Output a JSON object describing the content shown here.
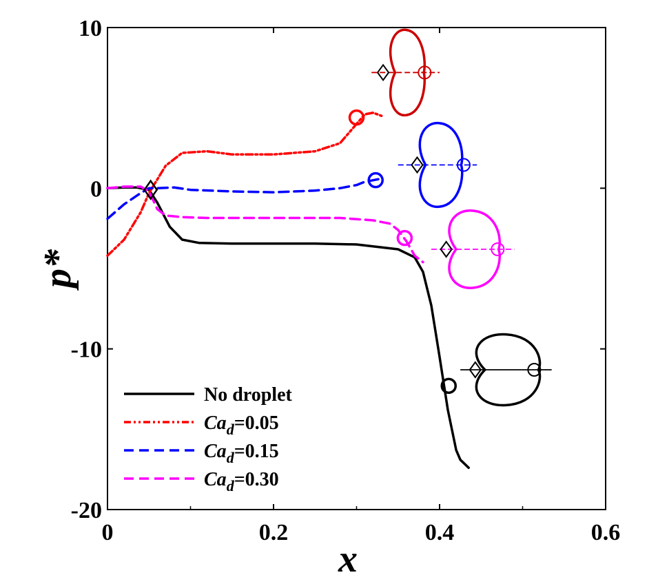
{
  "chart_data": {
    "type": "line",
    "xlabel": "x",
    "ylabel": "p*",
    "xlim": [
      0,
      0.6
    ],
    "ylim": [
      -20,
      10
    ],
    "xticks": [
      0,
      0.2,
      0.4,
      0.6
    ],
    "yticks": [
      -20,
      -10,
      0,
      10
    ],
    "xtick_labels": [
      "0",
      "0.2",
      "0.4",
      "0.6"
    ],
    "ytick_labels": [
      "-20",
      "-10",
      "0",
      "10"
    ],
    "grid": false,
    "legend_position": "bottom-left",
    "series": [
      {
        "name": "No droplet",
        "name_parts": [
          "No droplet",
          "",
          ""
        ],
        "color": "#000000",
        "style": "solid",
        "x": [
          0,
          0.02,
          0.035,
          0.05,
          0.06,
          0.075,
          0.09,
          0.11,
          0.15,
          0.25,
          0.3,
          0.35,
          0.37,
          0.38,
          0.39,
          0.4,
          0.41,
          0.42,
          0.425,
          0.435
        ],
        "y": [
          0,
          0.05,
          0.05,
          -0.1,
          -0.9,
          -2.4,
          -3.2,
          -3.4,
          -3.45,
          -3.45,
          -3.5,
          -3.8,
          -4.3,
          -5.2,
          -7.3,
          -10.5,
          -13.8,
          -16.3,
          -16.9,
          -17.4
        ]
      },
      {
        "name": "Cad=0.05",
        "name_parts": [
          "Ca",
          "d",
          "=0.05"
        ],
        "color": "#ff0000",
        "style": "dashdot",
        "x": [
          0,
          0.02,
          0.04,
          0.05,
          0.07,
          0.09,
          0.12,
          0.15,
          0.2,
          0.25,
          0.28,
          0.3,
          0.31,
          0.32,
          0.33
        ],
        "y": [
          -4.2,
          -3.2,
          -1.5,
          -0.3,
          1.4,
          2.2,
          2.3,
          2.1,
          2.1,
          2.3,
          2.8,
          4.0,
          4.6,
          4.7,
          4.5
        ]
      },
      {
        "name": "Cad=0.15",
        "name_parts": [
          "Ca",
          "d",
          "=0.15"
        ],
        "color": "#0000ff",
        "style": "dashed",
        "x": [
          0,
          0.02,
          0.04,
          0.05,
          0.06,
          0.08,
          0.1,
          0.15,
          0.2,
          0.25,
          0.28,
          0.3,
          0.31,
          0.32,
          0.33
        ],
        "y": [
          -1.9,
          -1.0,
          -0.3,
          0,
          0,
          0.05,
          -0.1,
          -0.2,
          -0.25,
          -0.15,
          0,
          0.2,
          0.4,
          0.5,
          0.6
        ]
      },
      {
        "name": "Cad=0.30",
        "name_parts": [
          "Ca",
          "d",
          "=0.30"
        ],
        "color": "#ff00ff",
        "style": "dashed",
        "x": [
          0,
          0.02,
          0.04,
          0.05,
          0.06,
          0.07,
          0.09,
          0.12,
          0.2,
          0.28,
          0.32,
          0.34,
          0.35,
          0.36,
          0.37,
          0.38
        ],
        "y": [
          0,
          0.1,
          0.1,
          -0.2,
          -1.3,
          -1.7,
          -1.8,
          -1.85,
          -1.85,
          -1.85,
          -2.0,
          -2.2,
          -2.6,
          -3.3,
          -4.2,
          -4.6
        ]
      }
    ],
    "markers": [
      {
        "type": "diamond",
        "x": 0.052,
        "y": -0.1,
        "color": "#000000"
      },
      {
        "type": "circle",
        "x": 0.3,
        "y": 4.4,
        "color": "#ff0000"
      },
      {
        "type": "circle",
        "x": 0.323,
        "y": 0.5,
        "color": "#0000ff"
      },
      {
        "type": "circle",
        "x": 0.358,
        "y": -3.1,
        "color": "#ff00ff"
      },
      {
        "type": "circle",
        "x": 0.411,
        "y": -12.3,
        "color": "#000000"
      }
    ],
    "droplet_shapes": [
      {
        "color": "#cc0000",
        "center_x": 0.36,
        "center_y": 7.2,
        "rx": 0.021,
        "ry": 2.65,
        "axis_x": [
          0.318,
          0.4
        ],
        "diamond_x": 0.332,
        "circle_x": 0.382
      },
      {
        "color": "#0000ff",
        "center_x": 0.4,
        "center_y": 1.45,
        "rx": 0.026,
        "ry": 2.6,
        "axis_x": [
          0.35,
          0.445
        ],
        "diamond_x": 0.373,
        "circle_x": 0.429
      },
      {
        "color": "#ff00ff",
        "center_x": 0.44,
        "center_y": -3.8,
        "rx": 0.031,
        "ry": 2.4,
        "axis_x": [
          0.39,
          0.49
        ],
        "diamond_x": 0.408,
        "circle_x": 0.47
      },
      {
        "color": "#000000",
        "center_x": 0.48,
        "center_y": -11.3,
        "rx": 0.039,
        "ry": 2.2,
        "axis_x": [
          0.425,
          0.535
        ],
        "diamond_x": 0.443,
        "circle_x": 0.514
      }
    ]
  }
}
